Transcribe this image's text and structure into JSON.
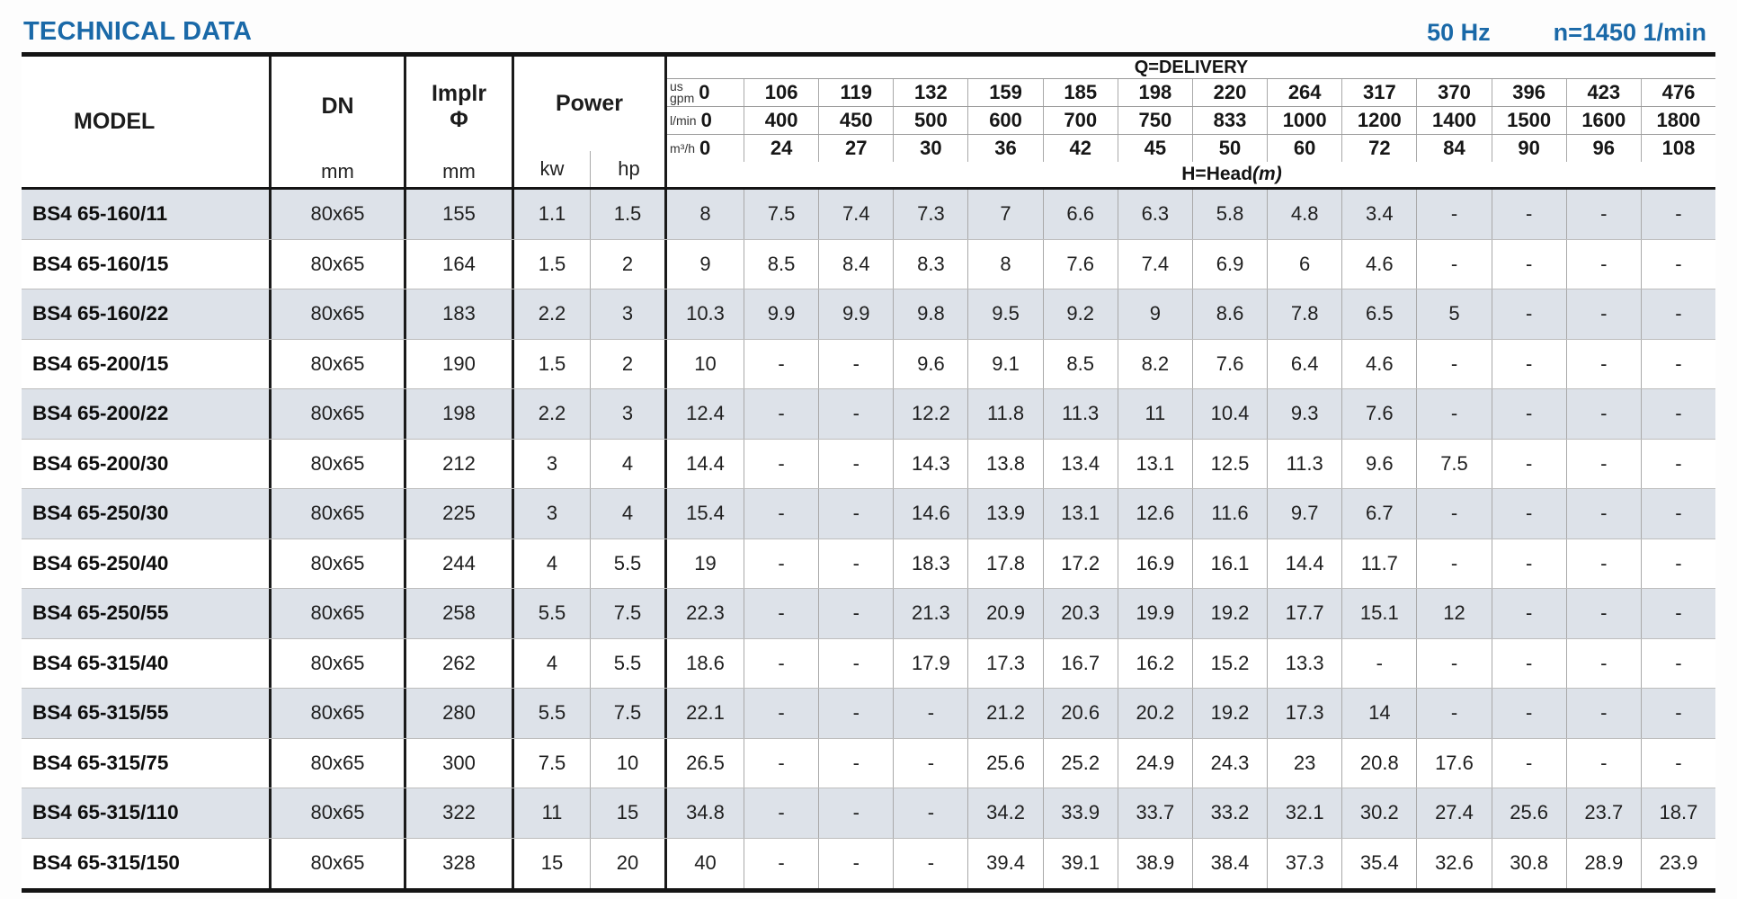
{
  "page": {
    "title": "TECHNICAL DATA",
    "frequency": "50 Hz",
    "speed": "n=1450 1/min"
  },
  "colors": {
    "accent_blue": "#1a69a8",
    "row_alt": "#dde2e9"
  },
  "table": {
    "col_headers": {
      "model": "MODEL",
      "dn": "DN",
      "dn_unit": "mm",
      "impeller": "Implr",
      "impeller_symbol": "Φ",
      "impeller_unit": "mm",
      "power": "Power",
      "power_kw": "kw",
      "power_hp": "hp",
      "delivery_title": "Q=DELIVERY",
      "head_label": "H=Head",
      "head_unit": "(m)"
    },
    "units": {
      "us_gpm": "us\ngpm",
      "l_min": "l/min",
      "m3_h": "m³/h"
    },
    "delivery": {
      "us_gpm": [
        "0",
        "106",
        "119",
        "132",
        "159",
        "185",
        "198",
        "220",
        "264",
        "317",
        "370",
        "396",
        "423",
        "476"
      ],
      "l_min": [
        "0",
        "400",
        "450",
        "500",
        "600",
        "700",
        "750",
        "833",
        "1000",
        "1200",
        "1400",
        "1500",
        "1600",
        "1800"
      ],
      "m3_h": [
        "0",
        "24",
        "27",
        "30",
        "36",
        "42",
        "45",
        "50",
        "60",
        "72",
        "84",
        "90",
        "96",
        "108"
      ]
    },
    "rows": [
      {
        "model": "BS4 65-160/11",
        "dn": "80x65",
        "impeller": "155",
        "kw": "1.1",
        "hp": "1.5",
        "head": [
          "8",
          "7.5",
          "7.4",
          "7.3",
          "7",
          "6.6",
          "6.3",
          "5.8",
          "4.8",
          "3.4",
          "-",
          "-",
          "-",
          "-"
        ]
      },
      {
        "model": "BS4 65-160/15",
        "dn": "80x65",
        "impeller": "164",
        "kw": "1.5",
        "hp": "2",
        "head": [
          "9",
          "8.5",
          "8.4",
          "8.3",
          "8",
          "7.6",
          "7.4",
          "6.9",
          "6",
          "4.6",
          "-",
          "-",
          "-",
          "-"
        ]
      },
      {
        "model": "BS4 65-160/22",
        "dn": "80x65",
        "impeller": "183",
        "kw": "2.2",
        "hp": "3",
        "head": [
          "10.3",
          "9.9",
          "9.9",
          "9.8",
          "9.5",
          "9.2",
          "9",
          "8.6",
          "7.8",
          "6.5",
          "5",
          "-",
          "-",
          "-"
        ]
      },
      {
        "model": "BS4 65-200/15",
        "dn": "80x65",
        "impeller": "190",
        "kw": "1.5",
        "hp": "2",
        "head": [
          "10",
          "-",
          "-",
          "9.6",
          "9.1",
          "8.5",
          "8.2",
          "7.6",
          "6.4",
          "4.6",
          "-",
          "-",
          "-",
          "-"
        ]
      },
      {
        "model": "BS4 65-200/22",
        "dn": "80x65",
        "impeller": "198",
        "kw": "2.2",
        "hp": "3",
        "head": [
          "12.4",
          "-",
          "-",
          "12.2",
          "11.8",
          "11.3",
          "11",
          "10.4",
          "9.3",
          "7.6",
          "-",
          "-",
          "-",
          "-"
        ]
      },
      {
        "model": "BS4 65-200/30",
        "dn": "80x65",
        "impeller": "212",
        "kw": "3",
        "hp": "4",
        "head": [
          "14.4",
          "-",
          "-",
          "14.3",
          "13.8",
          "13.4",
          "13.1",
          "12.5",
          "11.3",
          "9.6",
          "7.5",
          "-",
          "-",
          "-"
        ]
      },
      {
        "model": "BS4 65-250/30",
        "dn": "80x65",
        "impeller": "225",
        "kw": "3",
        "hp": "4",
        "head": [
          "15.4",
          "-",
          "-",
          "14.6",
          "13.9",
          "13.1",
          "12.6",
          "11.6",
          "9.7",
          "6.7",
          "-",
          "-",
          "-",
          "-"
        ]
      },
      {
        "model": "BS4 65-250/40",
        "dn": "80x65",
        "impeller": "244",
        "kw": "4",
        "hp": "5.5",
        "head": [
          "19",
          "-",
          "-",
          "18.3",
          "17.8",
          "17.2",
          "16.9",
          "16.1",
          "14.4",
          "11.7",
          "-",
          "-",
          "-",
          "-"
        ]
      },
      {
        "model": "BS4 65-250/55",
        "dn": "80x65",
        "impeller": "258",
        "kw": "5.5",
        "hp": "7.5",
        "head": [
          "22.3",
          "-",
          "-",
          "21.3",
          "20.9",
          "20.3",
          "19.9",
          "19.2",
          "17.7",
          "15.1",
          "12",
          "-",
          "-",
          "-"
        ]
      },
      {
        "model": "BS4 65-315/40",
        "dn": "80x65",
        "impeller": "262",
        "kw": "4",
        "hp": "5.5",
        "head": [
          "18.6",
          "-",
          "-",
          "17.9",
          "17.3",
          "16.7",
          "16.2",
          "15.2",
          "13.3",
          "-",
          "-",
          "-",
          "-",
          "-"
        ]
      },
      {
        "model": "BS4 65-315/55",
        "dn": "80x65",
        "impeller": "280",
        "kw": "5.5",
        "hp": "7.5",
        "head": [
          "22.1",
          "-",
          "-",
          "-",
          "21.2",
          "20.6",
          "20.2",
          "19.2",
          "17.3",
          "14",
          "-",
          "-",
          "-",
          "-"
        ]
      },
      {
        "model": "BS4 65-315/75",
        "dn": "80x65",
        "impeller": "300",
        "kw": "7.5",
        "hp": "10",
        "head": [
          "26.5",
          "-",
          "-",
          "-",
          "25.6",
          "25.2",
          "24.9",
          "24.3",
          "23",
          "20.8",
          "17.6",
          "-",
          "-",
          "-"
        ]
      },
      {
        "model": "BS4 65-315/110",
        "dn": "80x65",
        "impeller": "322",
        "kw": "11",
        "hp": "15",
        "head": [
          "34.8",
          "-",
          "-",
          "-",
          "34.2",
          "33.9",
          "33.7",
          "33.2",
          "32.1",
          "30.2",
          "27.4",
          "25.6",
          "23.7",
          "18.7"
        ]
      },
      {
        "model": "BS4 65-315/150",
        "dn": "80x65",
        "impeller": "328",
        "kw": "15",
        "hp": "20",
        "head": [
          "40",
          "-",
          "-",
          "-",
          "39.4",
          "39.1",
          "38.9",
          "38.4",
          "37.3",
          "35.4",
          "32.6",
          "30.8",
          "28.9",
          "23.9"
        ]
      }
    ]
  }
}
